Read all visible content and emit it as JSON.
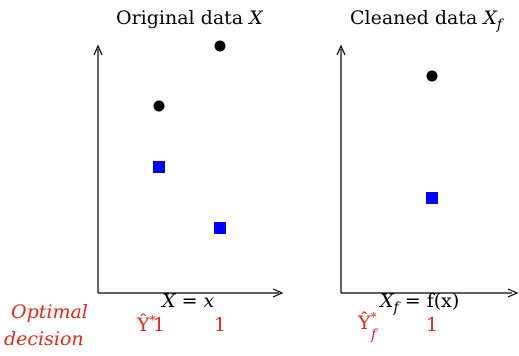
{
  "colors": {
    "axis": "#000000",
    "black_point": "#000000",
    "square": "#0000ff",
    "decision_text": "#e4261c"
  },
  "decision_label": {
    "line1": "Optimal",
    "line2": "decision"
  },
  "panels": [
    {
      "title_main": "Original data ",
      "title_var": "X",
      "title_sub": "",
      "xlabel": "X = x",
      "decision_symbol": "Ŷ",
      "decision_sup": "*",
      "decision_sub": "",
      "decisions": [
        "1",
        "1"
      ]
    },
    {
      "title_main": "Cleaned data ",
      "title_var": "X",
      "title_sub": "f",
      "xlabel_var": "X",
      "xlabel_sub": "f",
      "xlabel_rest": " = f(x)",
      "decision_symbol": "Ŷ",
      "decision_sup": "*",
      "decision_sub": "f",
      "decisions": [
        "1"
      ]
    }
  ],
  "chart_data": [
    {
      "type": "scatter",
      "title": "Original data X",
      "xlabel": "X = x",
      "series": [
        {
          "marker": "circle",
          "color": "#000000",
          "points": [
            [
              1,
              2
            ],
            [
              2,
              3
            ]
          ]
        },
        {
          "marker": "square",
          "color": "#0000ff",
          "points": [
            [
              1,
              1
            ],
            [
              2,
              0
            ]
          ]
        }
      ]
    },
    {
      "type": "scatter",
      "title": "Cleaned data X_f",
      "xlabel": "X_f = f(x)",
      "series": [
        {
          "marker": "circle",
          "color": "#000000",
          "points": [
            [
              1,
              2.5
            ]
          ]
        },
        {
          "marker": "square",
          "color": "#0000ff",
          "points": [
            [
              1,
              0.7
            ]
          ]
        }
      ]
    }
  ]
}
